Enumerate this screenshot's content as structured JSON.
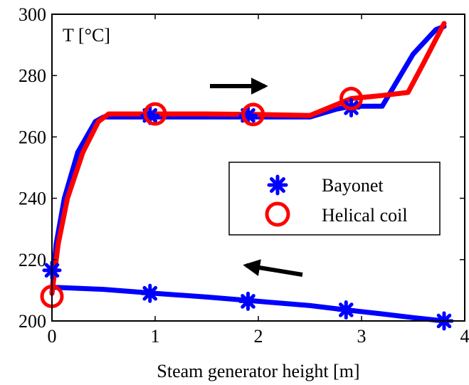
{
  "chart_data": {
    "type": "line",
    "annotation": "T [°C]",
    "xlabel": "Steam generator height [m]",
    "ylabel": "",
    "xlim": [
      0,
      4
    ],
    "ylim": [
      200,
      300
    ],
    "xticks": [
      0,
      1,
      2,
      3,
      4
    ],
    "yticks": [
      200,
      220,
      240,
      260,
      280,
      300
    ],
    "grid": false,
    "legend_position": "right",
    "series": [
      {
        "name": "Bayonet",
        "color": "#0000ff",
        "marker": "asterisk",
        "hot_x": [
          0.0,
          0.04,
          0.12,
          0.25,
          0.42,
          0.5,
          0.7,
          1.0,
          1.5,
          2.0,
          2.5,
          2.75,
          2.9,
          3.2,
          3.5,
          3.72,
          3.8
        ],
        "hot_y": [
          209,
          225,
          240,
          255,
          265,
          266.5,
          266.5,
          266.5,
          266.5,
          266.5,
          266.5,
          269,
          270,
          270,
          287,
          295,
          296
        ],
        "cold_x": [
          0.0,
          0.5,
          1.0,
          1.5,
          2.0,
          2.5,
          2.85,
          3.2,
          3.5,
          3.8
        ],
        "cold_y": [
          211,
          210.3,
          209,
          207.8,
          206.4,
          205,
          203.6,
          202.3,
          201.1,
          200
        ],
        "marker_points": [
          [
            0.0,
            216.5
          ],
          [
            0.95,
            209
          ],
          [
            1.9,
            206.4
          ],
          [
            2.85,
            203.6
          ],
          [
            3.8,
            200
          ],
          [
            0.95,
            267
          ],
          [
            1.9,
            267
          ],
          [
            2.9,
            269.5
          ]
        ]
      },
      {
        "name": "Helical coil",
        "color": "#ff0000",
        "marker": "circle",
        "hot_x": [
          0.0,
          0.06,
          0.15,
          0.3,
          0.45,
          0.55,
          0.75,
          1.0,
          1.5,
          2.0,
          2.5,
          2.9,
          3.2,
          3.45,
          3.6,
          3.8
        ],
        "hot_y": [
          209,
          225,
          240,
          255,
          265,
          267.5,
          267.5,
          267.5,
          267.5,
          267.3,
          267,
          272.5,
          273.5,
          274.5,
          284,
          297
        ],
        "marker_points": [
          [
            0.0,
            208
          ],
          [
            1.0,
            267.5
          ],
          [
            1.95,
            267.3
          ],
          [
            2.9,
            272.5
          ]
        ]
      }
    ]
  },
  "legend": {
    "bayonet_label": "Bayonet",
    "helical_label": "Helical coil"
  }
}
